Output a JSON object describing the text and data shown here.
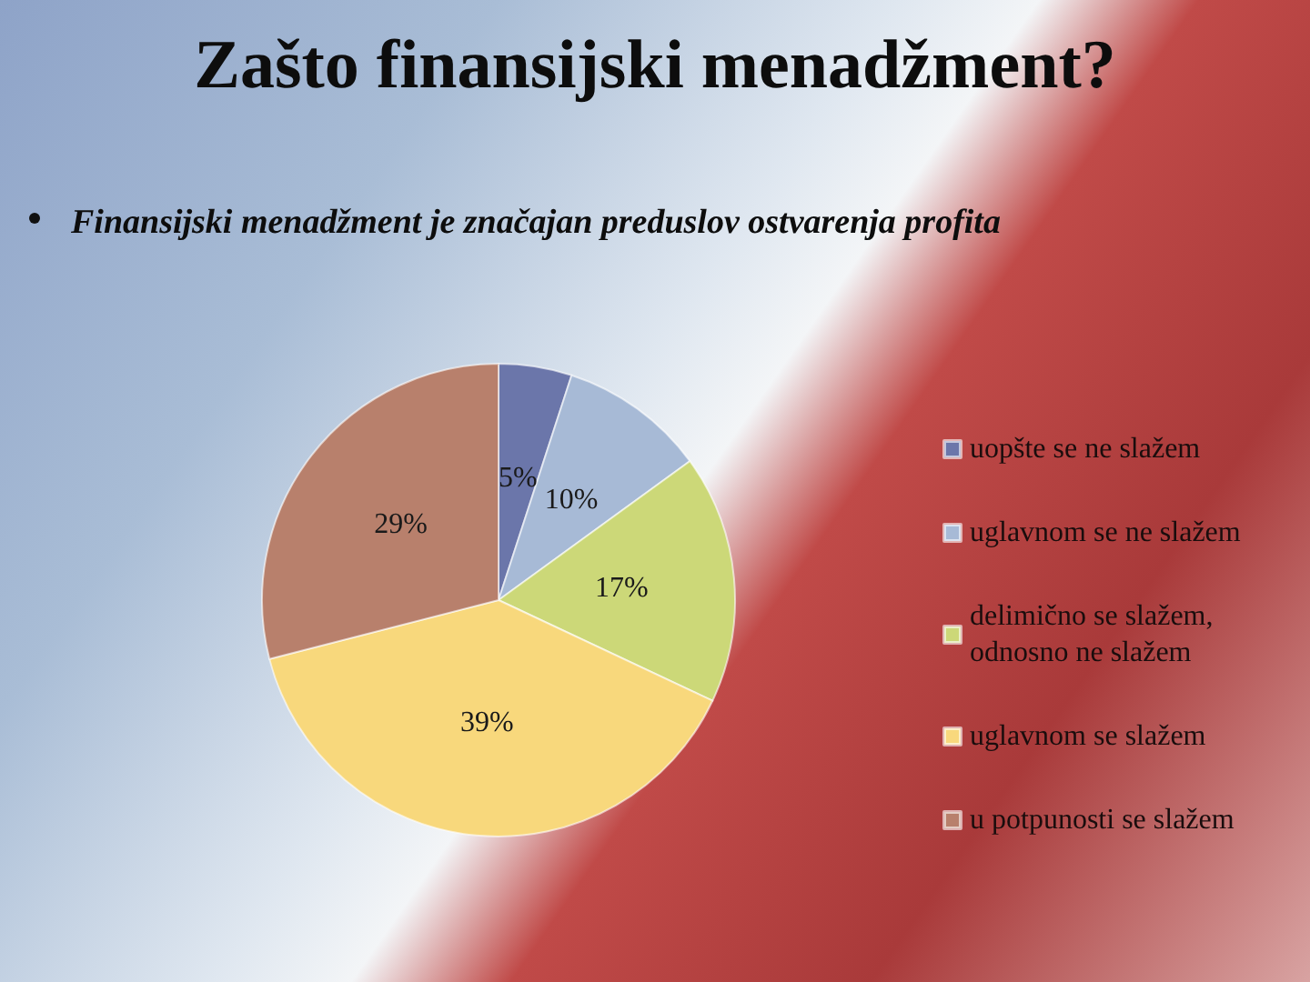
{
  "chart_data": {
    "type": "pie",
    "title": "Zašto finansijski menadžment?",
    "subtitle": "Finansijski menadžment je značajan preduslov ostvarenja profita",
    "categories": [
      "uopšte se ne slažem",
      "uglavnom se ne slažem",
      "delimično se slažem, odnosno ne slažem",
      "uglavnom se slažem",
      "u potpunosti se slažem"
    ],
    "values": [
      5,
      10,
      17,
      39,
      29
    ],
    "colors": [
      "#6b76aa",
      "#a7bad6",
      "#ccd878",
      "#f8d87c",
      "#b8806c"
    ],
    "value_labels": [
      "5%",
      "10%",
      "17%",
      "39%",
      "29%"
    ],
    "legend": "right"
  }
}
